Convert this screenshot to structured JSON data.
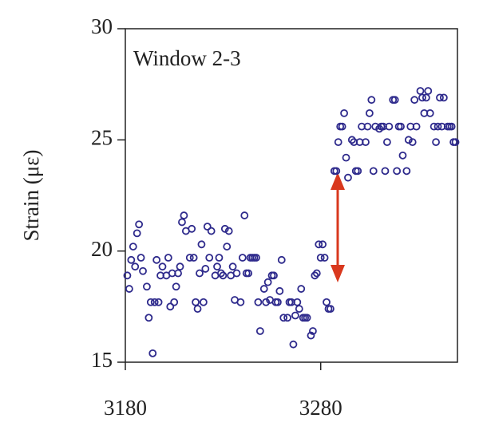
{
  "chart_data": {
    "type": "scatter",
    "ylabel": "Strain (με)",
    "annotation": "Window 2-3",
    "xlim": [
      3180,
      3350
    ],
    "ylim": [
      15,
      30
    ],
    "xticks": [
      3180,
      3280
    ],
    "yticks": [
      15,
      20,
      25,
      30
    ],
    "series": [
      {
        "color": "#2e2a8c",
        "x": [
          3181,
          3182,
          3183,
          3184,
          3185,
          3186,
          3187,
          3188,
          3189,
          3191,
          3192,
          3193,
          3194,
          3195,
          3196,
          3197,
          3198,
          3199,
          3201,
          3202,
          3203,
          3204,
          3205,
          3206,
          3207,
          3208,
          3209,
          3210,
          3211,
          3213,
          3214,
          3215,
          3216,
          3217,
          3218,
          3219,
          3220,
          3221,
          3222,
          3223,
          3224,
          3226,
          3227,
          3228,
          3229,
          3230,
          3231,
          3232,
          3233,
          3234,
          3235,
          3236,
          3237,
          3239,
          3240,
          3241,
          3242,
          3243,
          3244,
          3245,
          3246,
          3247,
          3248,
          3249,
          3251,
          3252,
          3253,
          3254,
          3255,
          3256,
          3257,
          3258,
          3259,
          3260,
          3261,
          3263,
          3264,
          3265,
          3266,
          3267,
          3268,
          3269,
          3270,
          3271,
          3272,
          3273,
          3275,
          3276,
          3277,
          3278,
          3279,
          3280,
          3281,
          3282,
          3283,
          3284,
          3285,
          3287,
          3288,
          3289,
          3290,
          3291,
          3292,
          3293,
          3294,
          3296,
          3297,
          3298,
          3299,
          3300,
          3301,
          3303,
          3304,
          3305,
          3306,
          3307,
          3308,
          3310,
          3311,
          3312,
          3313,
          3314,
          3315,
          3317,
          3318,
          3319,
          3320,
          3321,
          3322,
          3324,
          3325,
          3326,
          3327,
          3328,
          3329,
          3331,
          3332,
          3333,
          3334,
          3335,
          3336,
          3338,
          3339,
          3340,
          3341,
          3342,
          3343,
          3345,
          3346,
          3347,
          3348,
          3349
        ],
        "values": [
          18.9,
          18.3,
          19.6,
          20.2,
          19.3,
          20.8,
          21.2,
          19.7,
          19.1,
          18.4,
          17.0,
          17.7,
          15.4,
          17.7,
          19.6,
          17.7,
          18.9,
          19.3,
          18.9,
          19.7,
          17.5,
          19.0,
          17.7,
          18.4,
          19.0,
          19.3,
          21.3,
          21.6,
          20.9,
          19.7,
          21.0,
          19.7,
          17.7,
          17.4,
          19.0,
          20.3,
          17.7,
          19.2,
          21.1,
          19.7,
          20.9,
          18.9,
          19.3,
          19.7,
          19.0,
          18.9,
          21.0,
          20.2,
          20.9,
          18.9,
          19.3,
          17.8,
          19.0,
          17.7,
          19.7,
          21.6,
          19.0,
          19.0,
          19.7,
          19.7,
          19.7,
          19.7,
          17.7,
          16.4,
          18.3,
          17.7,
          18.6,
          17.8,
          18.9,
          18.9,
          17.7,
          17.7,
          18.2,
          19.6,
          17.0,
          17.0,
          17.7,
          17.7,
          15.8,
          17.1,
          17.7,
          17.4,
          18.3,
          17.0,
          17.0,
          17.0,
          16.2,
          16.4,
          18.9,
          19.0,
          20.3,
          19.7,
          20.3,
          19.7,
          17.7,
          17.4,
          17.4,
          23.6,
          23.6,
          24.9,
          25.6,
          25.6,
          26.2,
          24.2,
          23.3,
          25.0,
          24.9,
          23.6,
          23.6,
          24.9,
          25.6,
          24.9,
          25.6,
          26.2,
          26.8,
          23.6,
          25.6,
          25.5,
          25.6,
          25.6,
          23.6,
          24.9,
          25.6,
          26.8,
          26.8,
          23.6,
          25.6,
          25.6,
          24.3,
          23.6,
          25.0,
          25.6,
          24.9,
          26.8,
          25.6,
          27.2,
          26.9,
          26.2,
          26.9,
          27.2,
          26.2,
          25.6,
          24.9,
          25.6,
          26.9,
          25.6,
          26.9,
          25.6,
          25.6,
          25.6,
          24.9,
          24.9
        ]
      }
    ]
  }
}
